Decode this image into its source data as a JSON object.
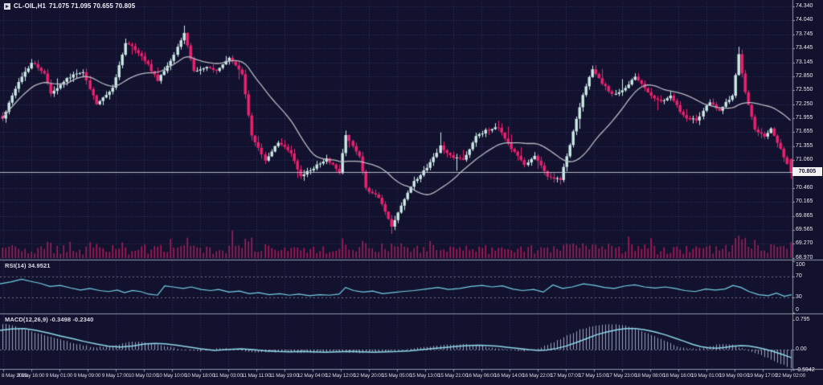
{
  "header": {
    "symbol": "CL-OIL,H1",
    "ohlc": "71.075 71.095 70.655 70.805"
  },
  "main_panel": {
    "current_price": "70.805",
    "price_axis_labels": [
      "74.340",
      "74.040",
      "73.745",
      "73.445",
      "73.145",
      "72.850",
      "72.550",
      "72.250",
      "71.955",
      "71.655",
      "71.355",
      "71.060",
      "70.760",
      "70.460",
      "70.165",
      "69.865",
      "69.565",
      "69.270",
      "68.970"
    ]
  },
  "rsi_panel": {
    "label": "RSI(14) 34.9521",
    "axis_labels": [
      "100",
      "70",
      "30",
      "0"
    ],
    "levels": [
      70,
      30
    ]
  },
  "macd_panel": {
    "label": "MACD(12,26,9) -0.3498 -0.2340",
    "axis_labels": [
      "0.795",
      "0.00",
      "-0.5942"
    ]
  },
  "time_axis": {
    "labels": [
      "8 May 2023",
      "8 May 16:00",
      "9 May 01:00",
      "9 May 09:00",
      "9 May 17:00",
      "10 May 02:00",
      "10 May 10:00",
      "10 May 18:00",
      "11 May 03:00",
      "11 May 11:00",
      "11 May 19:00",
      "12 May 04:00",
      "12 May 12:00",
      "12 May 20:00",
      "15 May 05:00",
      "15 May 13:00",
      "15 May 21:00",
      "16 May 06:00",
      "16 May 14:00",
      "16 May 22:00",
      "17 May 07:00",
      "17 May 15:00",
      "17 May 23:00",
      "18 May 08:00",
      "18 May 16:00",
      "19 May 01:00",
      "19 May 09:00",
      "19 May 17:00",
      "22 May 02:00"
    ]
  },
  "colors": {
    "background": "#12122e",
    "bull_candle": "#cdeae6",
    "bear_candle": "#ee2170",
    "volume": "#d81f69",
    "ma_line": "#b6b9c2",
    "rsi_line": "#74cfe6",
    "macd_signal": "#8fd8ea",
    "macd_histogram": "#a9b3d0",
    "axis_text": "#e6e8f1",
    "panel_border": "#aab0c0",
    "price_line": "#c9cdd9",
    "price_box_bg": "#f2f2f4"
  },
  "chart_data": [
    {
      "type": "candlestick",
      "name": "CL-OIL H1 price",
      "ylim": [
        68.97,
        74.34
      ],
      "bar_count": 244,
      "close_path_anchors": [
        [
          0,
          71.95
        ],
        [
          4,
          72.6
        ],
        [
          9,
          73.15
        ],
        [
          13,
          72.9
        ],
        [
          15,
          72.5
        ],
        [
          22,
          72.9
        ],
        [
          25,
          72.95
        ],
        [
          29,
          72.25
        ],
        [
          34,
          72.6
        ],
        [
          38,
          73.55
        ],
        [
          40,
          73.5
        ],
        [
          44,
          73.2
        ],
        [
          48,
          72.75
        ],
        [
          53,
          73.3
        ],
        [
          56,
          73.78
        ],
        [
          59,
          72.95
        ],
        [
          63,
          73.05
        ],
        [
          66,
          72.95
        ],
        [
          70,
          73.25
        ],
        [
          74,
          72.9
        ],
        [
          77,
          71.6
        ],
        [
          81,
          71.05
        ],
        [
          85,
          71.45
        ],
        [
          89,
          71.2
        ],
        [
          92,
          70.7
        ],
        [
          96,
          70.9
        ],
        [
          100,
          71.1
        ],
        [
          104,
          70.8
        ],
        [
          106,
          71.6
        ],
        [
          110,
          71.15
        ],
        [
          112,
          70.45
        ],
        [
          116,
          70.25
        ],
        [
          120,
          69.65
        ],
        [
          123,
          70.1
        ],
        [
          127,
          70.6
        ],
        [
          131,
          70.9
        ],
        [
          135,
          71.35
        ],
        [
          138,
          71.15
        ],
        [
          142,
          71.05
        ],
        [
          146,
          71.55
        ],
        [
          149,
          71.7
        ],
        [
          153,
          71.75
        ],
        [
          157,
          71.3
        ],
        [
          161,
          70.95
        ],
        [
          164,
          71.15
        ],
        [
          168,
          70.7
        ],
        [
          172,
          70.65
        ],
        [
          175,
          71.4
        ],
        [
          179,
          72.45
        ],
        [
          182,
          73.0
        ],
        [
          185,
          72.7
        ],
        [
          188,
          72.45
        ],
        [
          192,
          72.6
        ],
        [
          195,
          72.85
        ],
        [
          199,
          72.5
        ],
        [
          203,
          72.3
        ],
        [
          206,
          72.45
        ],
        [
          210,
          72.0
        ],
        [
          214,
          71.9
        ],
        [
          218,
          72.3
        ],
        [
          221,
          72.1
        ],
        [
          225,
          72.45
        ],
        [
          227,
          73.3
        ],
        [
          229,
          72.5
        ],
        [
          232,
          71.7
        ],
        [
          235,
          71.55
        ],
        [
          237,
          71.75
        ],
        [
          240,
          71.3
        ],
        [
          243,
          70.805
        ]
      ],
      "notable_extremes": [
        [
          56,
          "high",
          73.93
        ],
        [
          120,
          "low",
          69.48
        ],
        [
          227,
          "high",
          73.48
        ]
      ],
      "last_candle_ohlc": [
        71.075,
        71.095,
        70.655,
        70.805
      ]
    },
    {
      "type": "bar",
      "name": "tick-volume",
      "note_present": true
    },
    {
      "type": "line",
      "name": "RSI(14)",
      "ylim": [
        0,
        100
      ],
      "current_value": 34.9521,
      "x_value_anchors": [
        [
          0,
          56
        ],
        [
          14,
          60
        ],
        [
          27,
          65
        ],
        [
          38,
          61
        ],
        [
          50,
          57
        ],
        [
          62,
          51
        ],
        [
          75,
          53
        ],
        [
          88,
          48
        ],
        [
          100,
          44
        ],
        [
          112,
          47
        ],
        [
          124,
          43
        ],
        [
          135,
          41
        ],
        [
          146,
          44
        ],
        [
          155,
          39
        ],
        [
          165,
          43
        ],
        [
          175,
          41
        ],
        [
          185,
          36
        ],
        [
          196,
          34
        ],
        [
          205,
          52
        ],
        [
          215,
          50
        ],
        [
          228,
          47
        ],
        [
          238,
          50
        ],
        [
          250,
          45
        ],
        [
          262,
          43
        ],
        [
          272,
          45
        ],
        [
          285,
          40
        ],
        [
          298,
          42
        ],
        [
          310,
          37
        ],
        [
          322,
          39
        ],
        [
          335,
          35
        ],
        [
          348,
          37
        ],
        [
          360,
          34
        ],
        [
          372,
          36
        ],
        [
          385,
          33
        ],
        [
          398,
          35
        ],
        [
          410,
          34
        ],
        [
          422,
          36
        ],
        [
          430,
          49
        ],
        [
          440,
          43
        ],
        [
          452,
          40
        ],
        [
          464,
          42
        ],
        [
          476,
          37
        ],
        [
          488,
          39
        ],
        [
          500,
          41
        ],
        [
          515,
          43
        ],
        [
          530,
          46
        ],
        [
          545,
          49
        ],
        [
          558,
          45
        ],
        [
          572,
          47
        ],
        [
          586,
          51
        ],
        [
          600,
          53
        ],
        [
          612,
          50
        ],
        [
          625,
          52
        ],
        [
          638,
          46
        ],
        [
          650,
          43
        ],
        [
          664,
          45
        ],
        [
          676,
          40
        ],
        [
          688,
          54
        ],
        [
          700,
          47
        ],
        [
          712,
          50
        ],
        [
          726,
          56
        ],
        [
          740,
          53
        ],
        [
          752,
          49
        ],
        [
          764,
          47
        ],
        [
          778,
          52
        ],
        [
          790,
          54
        ],
        [
          802,
          50
        ],
        [
          815,
          48
        ],
        [
          828,
          50
        ],
        [
          840,
          47
        ],
        [
          852,
          43
        ],
        [
          865,
          41
        ],
        [
          878,
          46
        ],
        [
          890,
          44
        ],
        [
          902,
          46
        ],
        [
          912,
          53
        ],
        [
          922,
          49
        ],
        [
          932,
          41
        ],
        [
          944,
          35
        ],
        [
          956,
          33
        ],
        [
          966,
          38
        ],
        [
          976,
          32
        ],
        [
          985,
          35
        ]
      ]
    },
    {
      "type": "line",
      "name": "MACD(12,26,9) signal",
      "ylim": [
        -0.5942,
        0.795
      ],
      "x_value_anchors": [
        [
          0,
          0.52
        ],
        [
          15,
          0.56
        ],
        [
          30,
          0.57
        ],
        [
          45,
          0.52
        ],
        [
          60,
          0.45
        ],
        [
          75,
          0.37
        ],
        [
          90,
          0.3
        ],
        [
          105,
          0.22
        ],
        [
          120,
          0.15
        ],
        [
          135,
          0.09
        ],
        [
          150,
          0.07
        ],
        [
          165,
          0.1
        ],
        [
          180,
          0.15
        ],
        [
          193,
          0.17
        ],
        [
          205,
          0.16
        ],
        [
          220,
          0.12
        ],
        [
          235,
          0.07
        ],
        [
          250,
          0.02
        ],
        [
          267,
          -0.02
        ],
        [
          280,
          0.0
        ],
        [
          300,
          0.02
        ],
        [
          315,
          0.0
        ],
        [
          330,
          -0.03
        ],
        [
          345,
          -0.05
        ],
        [
          360,
          -0.06
        ],
        [
          375,
          -0.05
        ],
        [
          390,
          -0.06
        ],
        [
          405,
          -0.07
        ],
        [
          420,
          -0.06
        ],
        [
          435,
          -0.05
        ],
        [
          450,
          -0.06
        ],
        [
          465,
          -0.07
        ],
        [
          480,
          -0.06
        ],
        [
          495,
          -0.05
        ],
        [
          510,
          -0.03
        ],
        [
          525,
          0.0
        ],
        [
          540,
          0.03
        ],
        [
          555,
          0.06
        ],
        [
          570,
          0.09
        ],
        [
          582,
          0.11
        ],
        [
          595,
          0.12
        ],
        [
          608,
          0.11
        ],
        [
          620,
          0.09
        ],
        [
          632,
          0.06
        ],
        [
          645,
          0.03
        ],
        [
          658,
          0.0
        ],
        [
          670,
          -0.02
        ],
        [
          680,
          -0.01
        ],
        [
          692,
          0.03
        ],
        [
          705,
          0.1
        ],
        [
          718,
          0.2
        ],
        [
          730,
          0.3
        ],
        [
          742,
          0.4
        ],
        [
          755,
          0.48
        ],
        [
          768,
          0.54
        ],
        [
          779,
          0.57
        ],
        [
          790,
          0.57
        ],
        [
          802,
          0.54
        ],
        [
          815,
          0.48
        ],
        [
          828,
          0.4
        ],
        [
          840,
          0.31
        ],
        [
          852,
          0.22
        ],
        [
          862,
          0.14
        ],
        [
          872,
          0.08
        ],
        [
          882,
          0.05
        ],
        [
          892,
          0.04
        ],
        [
          902,
          0.06
        ],
        [
          912,
          0.09
        ],
        [
          922,
          0.11
        ],
        [
          932,
          0.1
        ],
        [
          942,
          0.06
        ],
        [
          952,
          0.01
        ],
        [
          962,
          -0.05
        ],
        [
          972,
          -0.12
        ],
        [
          985,
          -0.22
        ]
      ]
    }
  ]
}
